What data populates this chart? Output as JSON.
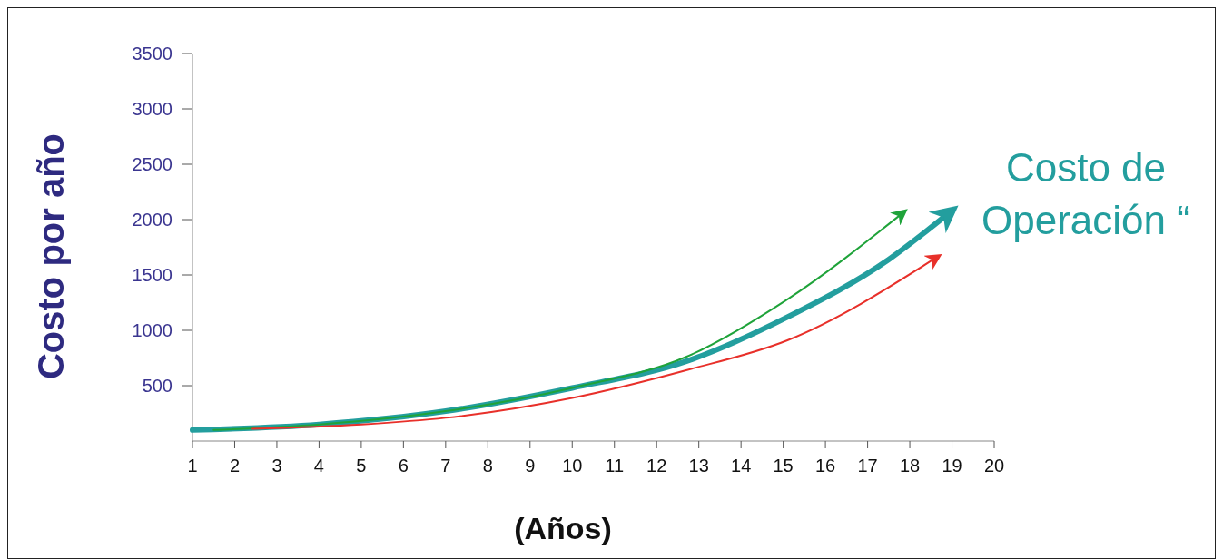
{
  "chart_data": {
    "type": "line",
    "xlabel": "(Años)",
    "ylabel": "Costo por año",
    "annotations": [
      "Costo de Operación “"
    ],
    "xlim": [
      1,
      20
    ],
    "xticks": [
      1,
      2,
      3,
      4,
      5,
      6,
      7,
      8,
      9,
      10,
      11,
      12,
      13,
      14,
      15,
      16,
      17,
      18,
      19,
      20
    ],
    "ylim": [
      0,
      3500
    ],
    "yticks": [
      500,
      1000,
      1500,
      2000,
      2500,
      3000,
      3500
    ],
    "grid": false,
    "marker": "none",
    "line_style": "solid",
    "series": [
      {
        "color": "#239e9e",
        "x": [
          1,
          4,
          7,
          10,
          12.7,
          15.1,
          17.5,
          18.9
        ],
        "values": [
          100,
          150,
          270,
          480,
          720,
          1120,
          1640,
          2050
        ]
      },
      {
        "color": "#1fa33a",
        "x": [
          1.5,
          4,
          7,
          10,
          12.7,
          15.1,
          17.8
        ],
        "values": [
          100,
          150,
          270,
          480,
          760,
          1280,
          2050
        ]
      },
      {
        "color": "#e8302a",
        "x": [
          2.4,
          5,
          7,
          10,
          12.7,
          15.1,
          18.6
        ],
        "values": [
          110,
          150,
          210,
          390,
          640,
          910,
          1650
        ]
      }
    ]
  }
}
